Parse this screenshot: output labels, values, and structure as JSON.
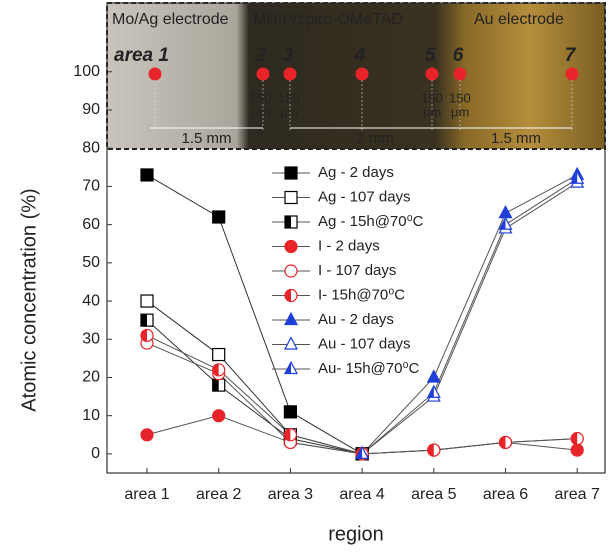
{
  "chart_data": {
    "type": "line",
    "ylabel": "Atomic concentration (%)",
    "xlabel": "region",
    "categories": [
      "area 1",
      "area 2",
      "area 3",
      "area 4",
      "area 5",
      "area 6",
      "area 7"
    ],
    "ylim": [
      -5,
      118
    ],
    "yticks": [
      0,
      10,
      20,
      30,
      40,
      50,
      60,
      70,
      80,
      90,
      100
    ],
    "series": [
      {
        "name": "Ag  - 2 days",
        "color": "#000000",
        "marker": "square",
        "fill": "full",
        "values": [
          73,
          62,
          11,
          0,
          null,
          null,
          null
        ]
      },
      {
        "name": "Ag - 107 days",
        "color": "#000000",
        "marker": "square",
        "fill": "open",
        "values": [
          40,
          26,
          5,
          0,
          null,
          null,
          null
        ]
      },
      {
        "name": "Ag - 15h@70⁰C",
        "color": "#000000",
        "marker": "square",
        "fill": "half",
        "values": [
          35,
          18,
          4,
          0,
          null,
          null,
          null
        ]
      },
      {
        "name": "I - 2 days",
        "color": "#e8242a",
        "marker": "circle",
        "fill": "full",
        "values": [
          5,
          10,
          3,
          0,
          1,
          3,
          1
        ]
      },
      {
        "name": "I - 107 days",
        "color": "#e8242a",
        "marker": "circle",
        "fill": "open",
        "values": [
          29,
          21,
          3,
          0,
          1,
          3,
          4
        ]
      },
      {
        "name": "I- 15h@70⁰C",
        "color": "#e8242a",
        "marker": "circle",
        "fill": "half",
        "values": [
          31,
          22,
          5,
          0,
          1,
          3,
          4
        ]
      },
      {
        "name": "Au - 2 days",
        "color": "#1f3fd8",
        "marker": "triangle",
        "fill": "full",
        "values": [
          null,
          null,
          null,
          0,
          20,
          63,
          73
        ]
      },
      {
        "name": "Au - 107 days",
        "color": "#1f3fd8",
        "marker": "triangle",
        "fill": "open",
        "values": [
          null,
          null,
          null,
          0,
          15,
          59,
          71
        ]
      },
      {
        "name": "Au- 15h@70⁰C",
        "color": "#1f3fd8",
        "marker": "triangle",
        "fill": "half",
        "values": [
          null,
          null,
          null,
          0,
          16,
          60,
          72
        ]
      }
    ],
    "inset": {
      "regions": [
        "Mo/Ag electrode",
        "MHIP/spiro-OMeTAD",
        "Au electrode"
      ],
      "points": [
        "area 1",
        "2",
        "3",
        "4",
        "5",
        "6",
        "7"
      ],
      "gap_number": "150",
      "gap_unit": "μm",
      "spans": [
        "1.5 mm",
        "2 mm",
        "1.5 mm"
      ]
    }
  }
}
